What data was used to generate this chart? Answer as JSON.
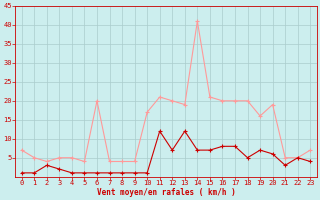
{
  "hours": [
    0,
    1,
    2,
    3,
    4,
    5,
    6,
    7,
    8,
    9,
    10,
    11,
    12,
    13,
    14,
    15,
    16,
    17,
    18,
    19,
    20,
    21,
    22,
    23
  ],
  "rafales": [
    7,
    5,
    4,
    5,
    5,
    4,
    20,
    4,
    4,
    4,
    17,
    21,
    20,
    19,
    41,
    21,
    20,
    20,
    20,
    16,
    19,
    5,
    5,
    7
  ],
  "moyen": [
    1,
    1,
    3,
    2,
    1,
    1,
    1,
    1,
    1,
    1,
    1,
    12,
    7,
    12,
    7,
    7,
    8,
    8,
    5,
    7,
    6,
    3,
    5,
    4
  ],
  "line_color_rafales": "#ff9999",
  "line_color_moyen": "#cc0000",
  "bg_color": "#cceeee",
  "grid_color": "#aacccc",
  "xlabel": "Vent moyen/en rafales ( km/h )",
  "xlabel_color": "#cc0000",
  "tick_color": "#cc0000",
  "spine_color": "#cc0000",
  "ylim": [
    0,
    45
  ],
  "yticks": [
    5,
    10,
    15,
    20,
    25,
    30,
    35,
    40,
    45
  ],
  "figsize": [
    3.2,
    2.0
  ],
  "dpi": 100
}
